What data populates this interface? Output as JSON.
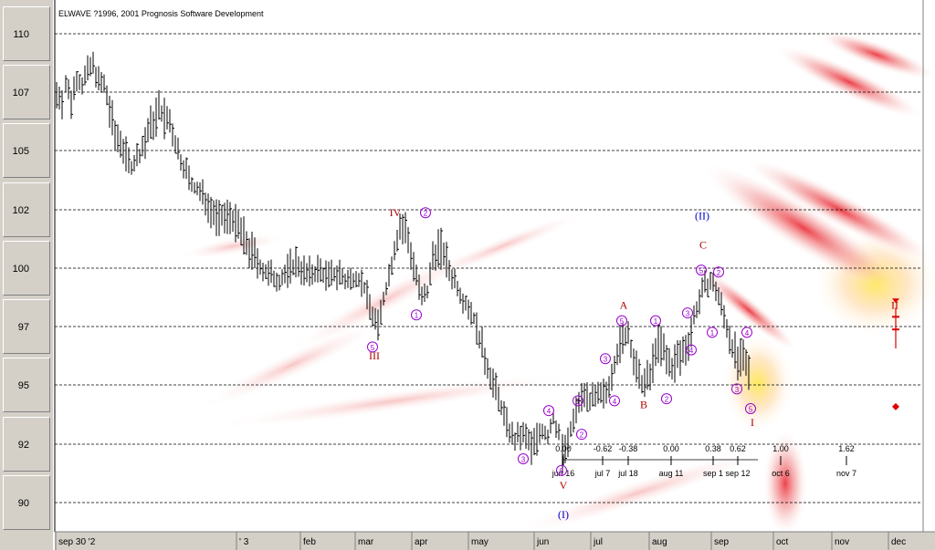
{
  "header": "ELWAVE ?1996, 2001 Prognosis Software Development",
  "colors": {
    "price": "#000000",
    "wave_minor": "#9900cc",
    "wave_major": "#b00000",
    "wave_primary": "#0000cc",
    "grid": "#000000",
    "projection": "#e00000"
  },
  "chart_data": {
    "type": "candlestick",
    "title": "",
    "ylim": [
      89,
      111
    ],
    "y_ticks": [
      90,
      92,
      95,
      97,
      100,
      102,
      105,
      107,
      110
    ],
    "x_labels": [
      "sep 30 '2",
      "' 3",
      "feb",
      "mar",
      "apr",
      "may",
      "jun",
      "jul",
      "aug",
      "sep",
      "oct",
      "nov",
      "dec"
    ],
    "price_path": [
      [
        0,
        107.0
      ],
      [
        6,
        106.8
      ],
      [
        10,
        107.4
      ],
      [
        16,
        106.7
      ],
      [
        22,
        107.8
      ],
      [
        28,
        107.4
      ],
      [
        34,
        108.1
      ],
      [
        40,
        108.4
      ],
      [
        46,
        107.6
      ],
      [
        52,
        107.3
      ],
      [
        58,
        106.4
      ],
      [
        64,
        105.5
      ],
      [
        70,
        105.3
      ],
      [
        76,
        104.7
      ],
      [
        82,
        104.2
      ],
      [
        88,
        104.6
      ],
      [
        94,
        105.0
      ],
      [
        100,
        105.6
      ],
      [
        106,
        106.0
      ],
      [
        112,
        106.4
      ],
      [
        118,
        106.1
      ],
      [
        124,
        105.9
      ],
      [
        130,
        105.2
      ],
      [
        136,
        104.5
      ],
      [
        142,
        104.0
      ],
      [
        148,
        103.2
      ],
      [
        154,
        103.0
      ],
      [
        160,
        102.8
      ],
      [
        166,
        102.3
      ],
      [
        172,
        102.0
      ],
      [
        178,
        101.7
      ],
      [
        184,
        101.8
      ],
      [
        190,
        101.9
      ],
      [
        196,
        101.5
      ],
      [
        202,
        101.2
      ],
      [
        208,
        100.8
      ],
      [
        214,
        100.5
      ],
      [
        220,
        100.2
      ],
      [
        226,
        99.8
      ],
      [
        232,
        99.6
      ],
      [
        238,
        99.5
      ],
      [
        244,
        99.4
      ],
      [
        250,
        99.6
      ],
      [
        256,
        99.9
      ],
      [
        262,
        100.1
      ],
      [
        268,
        99.9
      ],
      [
        274,
        99.6
      ],
      [
        280,
        99.7
      ],
      [
        286,
        99.8
      ],
      [
        292,
        99.7
      ],
      [
        298,
        99.5
      ],
      [
        304,
        99.6
      ],
      [
        310,
        99.7
      ],
      [
        316,
        99.3
      ],
      [
        322,
        99.4
      ],
      [
        328,
        99.6
      ],
      [
        334,
        99.3
      ],
      [
        340,
        98.6
      ],
      [
        346,
        97.6
      ],
      [
        352,
        97.1
      ],
      [
        358,
        98.4
      ],
      [
        364,
        99.6
      ],
      [
        370,
        100.6
      ],
      [
        376,
        101.4
      ],
      [
        382,
        101.3
      ],
      [
        388,
        100.5
      ],
      [
        394,
        99.6
      ],
      [
        400,
        98.4
      ],
      [
        406,
        98.7
      ],
      [
        412,
        100.4
      ],
      [
        418,
        100.7
      ],
      [
        424,
        100.5
      ],
      [
        430,
        99.8
      ],
      [
        436,
        99.4
      ],
      [
        442,
        98.7
      ],
      [
        448,
        98.2
      ],
      [
        454,
        97.8
      ],
      [
        460,
        97.0
      ],
      [
        466,
        96.2
      ],
      [
        472,
        95.6
      ],
      [
        478,
        95.0
      ],
      [
        484,
        94.3
      ],
      [
        490,
        93.5
      ],
      [
        496,
        92.7
      ],
      [
        502,
        92.2
      ],
      [
        508,
        92.5
      ],
      [
        514,
        92.4
      ],
      [
        520,
        92.0
      ],
      [
        526,
        92.4
      ],
      [
        532,
        92.7
      ],
      [
        538,
        92.4
      ],
      [
        544,
        93.3
      ],
      [
        550,
        92.5
      ],
      [
        554,
        91.8
      ],
      [
        560,
        92.1
      ],
      [
        566,
        93.2
      ],
      [
        572,
        94.2
      ],
      [
        578,
        94.6
      ],
      [
        584,
        94.3
      ],
      [
        590,
        94.3
      ],
      [
        596,
        94.4
      ],
      [
        602,
        94.6
      ],
      [
        608,
        95.4
      ],
      [
        614,
        96.1
      ],
      [
        620,
        96.5
      ],
      [
        626,
        96.8
      ],
      [
        632,
        95.8
      ],
      [
        638,
        95.1
      ],
      [
        644,
        95.0
      ],
      [
        650,
        95.2
      ],
      [
        656,
        96.3
      ],
      [
        662,
        96.4
      ],
      [
        668,
        95.8
      ],
      [
        674,
        95.6
      ],
      [
        680,
        95.9
      ],
      [
        686,
        96.1
      ],
      [
        692,
        96.5
      ],
      [
        698,
        97.5
      ],
      [
        704,
        98.4
      ],
      [
        710,
        99.1
      ],
      [
        716,
        99.3
      ],
      [
        722,
        98.9
      ],
      [
        728,
        98.1
      ],
      [
        734,
        97.0
      ],
      [
        740,
        96.3
      ],
      [
        746,
        95.8
      ],
      [
        752,
        95.8
      ],
      [
        758,
        95.4
      ],
      [
        762,
        94.8
      ]
    ],
    "projection": {
      "target_high": 98.3,
      "bar_marks": [
        97.5,
        96.9
      ],
      "bar_low": 96.5,
      "diamond": 93.9
    }
  },
  "time_ratios": [
    {
      "ratio": "0.00",
      "date": "jun 16"
    },
    {
      "ratio": "-0.62",
      "date": "jul 7"
    },
    {
      "ratio": "-0.38",
      "date": "jul 18"
    },
    {
      "ratio": "0.00",
      "date": "aug 11"
    },
    {
      "ratio": "0.38",
      "date": "sep 1"
    },
    {
      "ratio": "0.62",
      "date": "sep 12"
    },
    {
      "ratio": "1.00",
      "date": "oct 6"
    },
    {
      "ratio": "1.62",
      "date": "nov 7"
    }
  ],
  "wave_labels": [
    {
      "text": "IV",
      "price": 101.9,
      "offset": 0,
      "level": "major"
    },
    {
      "text": "III",
      "price": 96.0,
      "offset": 0,
      "level": "major"
    },
    {
      "text": "V",
      "price": 90.6,
      "offset": 0,
      "level": "major"
    },
    {
      "text": "(I)",
      "price": 89.6,
      "offset": 0,
      "level": "primary"
    },
    {
      "text": "A",
      "price": 98.1,
      "offset": 0,
      "level": "major"
    },
    {
      "text": "B",
      "price": 94.0,
      "offset": 0,
      "level": "major"
    },
    {
      "text": "C",
      "price": 100.8,
      "offset": 0,
      "level": "major"
    },
    {
      "text": "(II)",
      "price": 101.8,
      "offset": 0,
      "level": "primary"
    },
    {
      "text": "I",
      "price": 93.1,
      "offset": 0,
      "level": "major"
    },
    {
      "text": "II",
      "price": 98.1,
      "offset": 0,
      "level": "major"
    }
  ],
  "circled_labels": [
    "5",
    "1",
    "2",
    "3",
    "4",
    "5",
    "1",
    "2",
    "3",
    "4",
    "5",
    "1",
    "2",
    "3",
    "4",
    "5",
    "1",
    "2",
    "3",
    "4",
    "5",
    "1",
    "2"
  ]
}
